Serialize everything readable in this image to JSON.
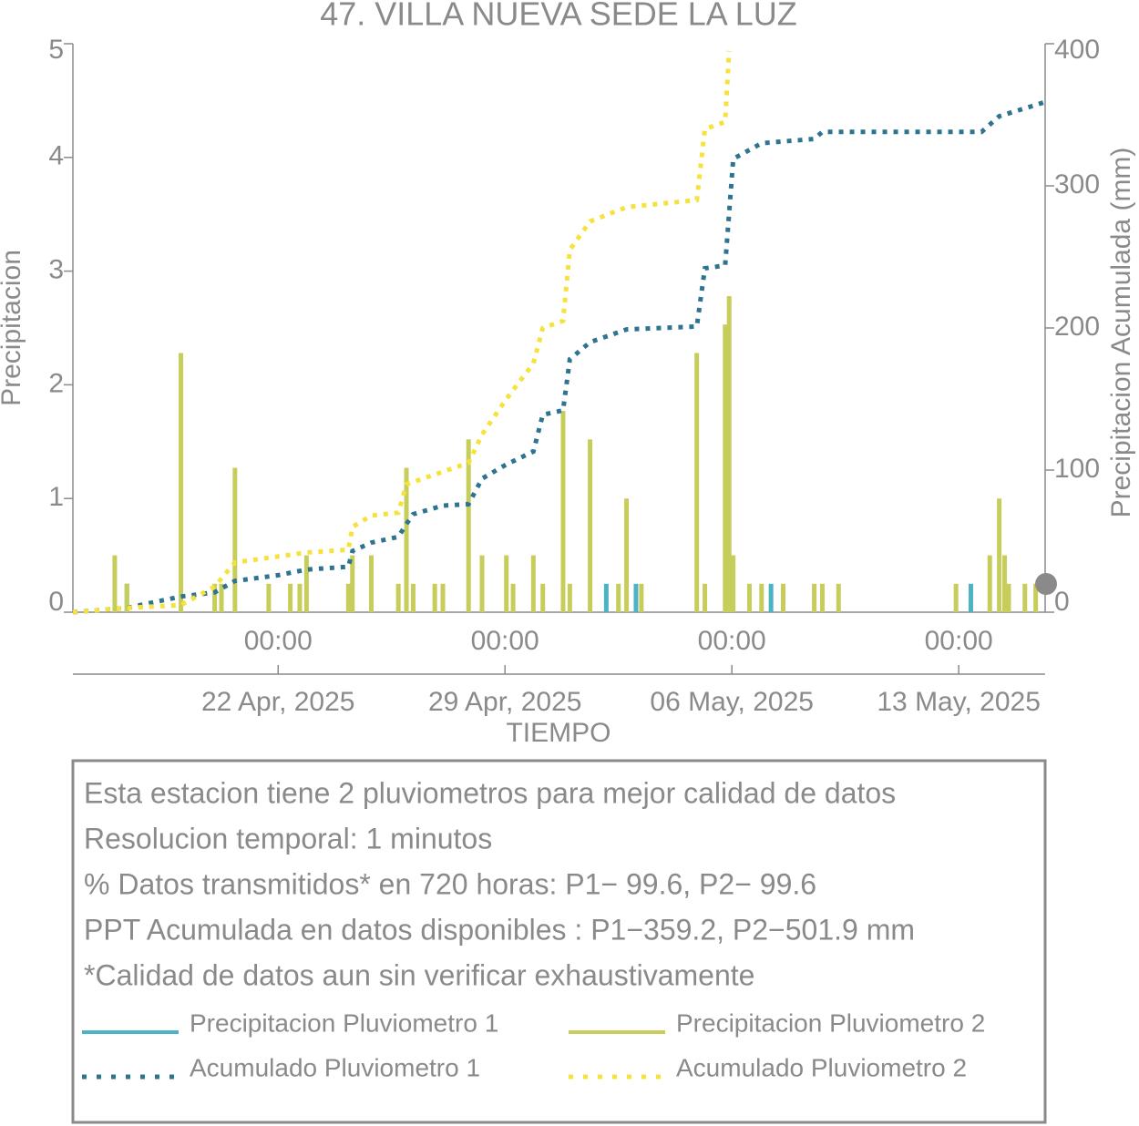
{
  "chart_data": {
    "type": "combo",
    "title": "47. VILLA NUEVA SEDE LA LUZ",
    "x_label": "TIEMPO",
    "y_label": "Precipitacion",
    "y2_label": "Precipitacion Acumulada (mm)",
    "xlim": [
      "2025-04-15 16:00",
      "2025-05-15 16:00"
    ],
    "xticks": [
      {
        "value": "2025-04-22 00:00",
        "label": "00:00"
      },
      {
        "value": "2025-04-29 00:00",
        "label": "00:00"
      },
      {
        "value": "2025-05-06 00:00",
        "label": "00:00"
      },
      {
        "value": "2025-05-13 00:00",
        "label": "00:00"
      }
    ],
    "xtick_dates": [
      "22 Apr, 2025",
      "29 Apr, 2025",
      "06 May, 2025",
      "13 May, 2025"
    ],
    "ylim": [
      0,
      5
    ],
    "yticks": [
      0,
      1,
      2,
      3,
      4,
      5
    ],
    "y2lim": [
      0,
      400
    ],
    "y2ticks": [
      0,
      100,
      200,
      300,
      400
    ],
    "notes": [
      "Esta estacion tiene 2 pluviometros para mejor calidad de datos",
      "Resolucion temporal: 1 minutos",
      "% Datos transmitidos* en 720 horas: P1− 99.6, P2− 99.6",
      "PPT Acumulada en datos disponibles : P1−359.2, P2−501.9 mm",
      "*Calidad de datos aun sin verificar exhaustivamente"
    ],
    "series": [
      {
        "name": "Precipitacion Pluviometro 1",
        "type": "bar",
        "color": "#4bb3c4",
        "x": [
          "2025-04-17 08:00",
          "2025-05-02 03:00",
          "2025-05-03 01:00",
          "2025-05-07 05:00",
          "2025-05-13 09:00"
        ],
        "values": [
          0.25,
          0.25,
          0.25,
          0.25,
          0.25
        ]
      },
      {
        "name": "Precipitacion Pluviometro 2",
        "type": "bar",
        "color": "#c6cd5a",
        "x": [
          "2025-04-16 23:00",
          "2025-04-17 08:00",
          "2025-04-19 00:00",
          "2025-04-20 01:00",
          "2025-04-20 06:00",
          "2025-04-20 16:00",
          "2025-04-21 17:00",
          "2025-04-22 09:00",
          "2025-04-22 16:00",
          "2025-04-22 21:00",
          "2025-04-24 04:00",
          "2025-04-24 07:00",
          "2025-04-24 21:00",
          "2025-04-25 17:00",
          "2025-04-25 23:00",
          "2025-04-26 04:00",
          "2025-04-26 20:00",
          "2025-04-27 02:00",
          "2025-04-27 21:00",
          "2025-04-28 07:00",
          "2025-04-29 01:00",
          "2025-04-29 06:00",
          "2025-04-29 21:00",
          "2025-04-30 04:00",
          "2025-04-30 19:00",
          "2025-05-01 00:00",
          "2025-05-01 15:00",
          "2025-05-02 12:00",
          "2025-05-02 18:00",
          "2025-05-03 05:00",
          "2025-05-04 22:00",
          "2025-05-05 04:00",
          "2025-05-05 19:00",
          "2025-05-05 22:00",
          "2025-05-06 01:00",
          "2025-05-06 13:00",
          "2025-05-06 22:00",
          "2025-05-07 14:00",
          "2025-05-08 13:00",
          "2025-05-08 19:00",
          "2025-05-09 07:00",
          "2025-05-12 22:00",
          "2025-05-13 23:00",
          "2025-05-14 06:00",
          "2025-05-14 10:00",
          "2025-05-14 13:00",
          "2025-05-15 01:00",
          "2025-05-15 09:00"
        ],
        "values": [
          0.5,
          0.25,
          2.28,
          0.25,
          0.25,
          1.27,
          0.25,
          0.25,
          0.25,
          0.5,
          0.25,
          0.5,
          0.5,
          0.25,
          1.27,
          0.25,
          0.25,
          0.25,
          1.52,
          0.5,
          0.5,
          0.25,
          0.5,
          0.25,
          1.77,
          0.25,
          1.52,
          0.25,
          1.0,
          0.25,
          2.28,
          0.25,
          2.53,
          2.78,
          0.5,
          0.25,
          0.25,
          0.25,
          0.25,
          0.25,
          0.25,
          0.25,
          0.5,
          1.0,
          0.5,
          0.25,
          0.25,
          0.25
        ]
      },
      {
        "name": "Acumulado Pluviometro 1",
        "type": "line",
        "axis": "y2",
        "color": "#2e7390",
        "x": [
          "2025-04-15 16:00",
          "2025-04-17 08:00",
          "2025-04-19 00:00",
          "2025-04-20 01:00",
          "2025-04-20 16:00",
          "2025-04-22 00:00",
          "2025-04-22 21:00",
          "2025-04-24 04:00",
          "2025-04-24 07:00",
          "2025-04-24 21:00",
          "2025-04-25 17:00",
          "2025-04-25 23:00",
          "2025-04-26 04:00",
          "2025-04-27 02:00",
          "2025-04-27 21:00",
          "2025-04-28 07:00",
          "2025-04-29 01:00",
          "2025-04-29 21:00",
          "2025-04-30 04:00",
          "2025-04-30 19:00",
          "2025-05-01 00:00",
          "2025-05-01 15:00",
          "2025-05-02 18:00",
          "2025-05-04 22:00",
          "2025-05-05 04:00",
          "2025-05-05 19:00",
          "2025-05-06 01:00",
          "2025-05-06 22:00",
          "2025-05-08 13:00",
          "2025-05-08 19:00",
          "2025-05-13 17:00",
          "2025-05-14 06:00",
          "2025-05-15 16:00"
        ],
        "values": [
          0,
          3,
          11,
          14,
          22,
          26,
          30,
          32,
          43,
          49,
          53,
          62,
          69,
          75,
          76,
          94,
          104,
          113,
          139,
          142,
          178,
          190,
          199,
          201,
          242,
          244,
          319,
          330,
          333,
          338,
          338,
          349,
          359
        ]
      },
      {
        "name": "Acumulado Pluviometro 2",
        "type": "line",
        "axis": "y2",
        "color": "#f5e23c",
        "x": [
          "2025-04-15 16:00",
          "2025-04-17 08:00",
          "2025-04-19 00:00",
          "2025-04-20 01:00",
          "2025-04-20 16:00",
          "2025-04-22 21:00",
          "2025-04-24 04:00",
          "2025-04-24 07:00",
          "2025-04-24 21:00",
          "2025-04-25 17:00",
          "2025-04-25 23:00",
          "2025-04-27 21:00",
          "2025-04-28 07:00",
          "2025-04-29 01:00",
          "2025-04-29 21:00",
          "2025-04-30 04:00",
          "2025-04-30 19:00",
          "2025-05-01 00:00",
          "2025-05-01 15:00",
          "2025-05-02 18:00",
          "2025-05-04 22:00",
          "2025-05-05 04:00",
          "2025-05-05 19:00",
          "2025-05-05 22:00"
        ],
        "values": [
          0,
          3,
          5,
          18,
          35,
          42,
          44,
          60,
          68,
          70,
          90,
          105,
          125,
          150,
          175,
          200,
          205,
          255,
          275,
          285,
          290,
          340,
          345,
          395
        ]
      }
    ]
  }
}
